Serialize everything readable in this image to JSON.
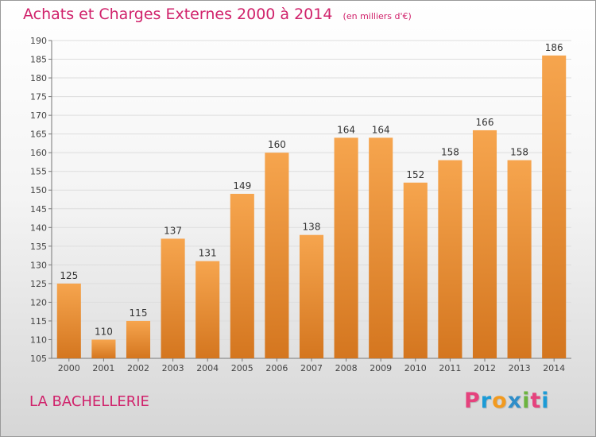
{
  "header": {
    "title": "Achats et Charges Externes 2000 à 2014",
    "subtitle": "(en milliers d'€)"
  },
  "footer": {
    "commune": "LA BACHELLERIE",
    "logo_text": "Proxiti"
  },
  "colors": {
    "accent": "#d0226b",
    "bar_light": "#f6a54e",
    "bar_dark": "#d4761f",
    "logo_letters": [
      "#e5427d",
      "#1c9bd6",
      "#f29a1f",
      "#2f8ec9",
      "#6cb43f",
      "#e5427d",
      "#1c9bd6"
    ]
  },
  "chart_data": {
    "type": "bar",
    "categories": [
      "2000",
      "2001",
      "2002",
      "2003",
      "2004",
      "2005",
      "2006",
      "2007",
      "2008",
      "2009",
      "2010",
      "2011",
      "2012",
      "2013",
      "2014"
    ],
    "values": [
      125,
      110,
      115,
      137,
      131,
      149,
      160,
      138,
      164,
      164,
      152,
      158,
      166,
      158,
      186
    ],
    "title": "Achats et Charges Externes 2000 à 2014",
    "ylim": [
      105,
      190
    ],
    "yticks": [
      105,
      110,
      115,
      120,
      125,
      130,
      135,
      140,
      145,
      150,
      155,
      160,
      165,
      170,
      175,
      180,
      185,
      190
    ],
    "grid": true,
    "data_labels": true
  }
}
